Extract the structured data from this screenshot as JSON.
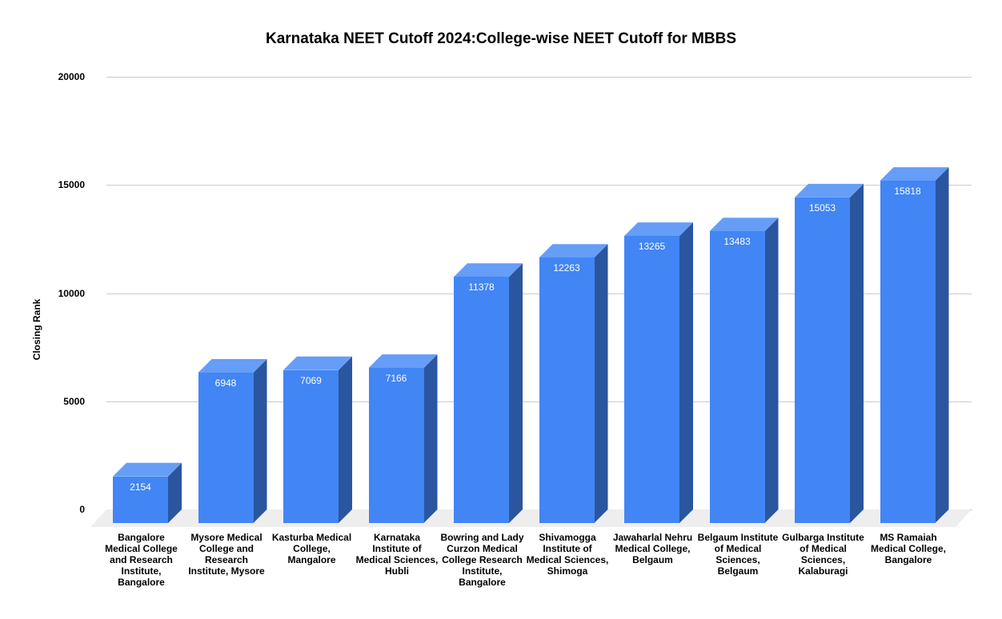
{
  "chart_data": {
    "type": "bar",
    "style": "3d",
    "title": "Karnataka NEET Cutoff 2024:College-wise NEET Cutoff for MBBS",
    "xlabel": "",
    "ylabel": "Closing Rank",
    "ylim": [
      0,
      20000
    ],
    "yticks": [
      "0",
      "5000",
      "10000",
      "15000",
      "20000"
    ],
    "grid": true,
    "legend": "none",
    "categories": [
      "Bangalore Medical College and Research Institute, Bangalore",
      "Mysore Medical College and Research Institute, Mysore",
      "Kasturba Medical College, Mangalore",
      "Karnataka Institute of Medical Sciences, Hubli",
      "Bowring and Lady Curzon Medical College Research Institute, Bangalore",
      "Shivamogga Institute of Medical Sciences, Shimoga",
      "Jawaharlal Nehru Medical College, Belgaum",
      "Belgaum Institute of Medical Sciences, Belgaum",
      "Gulbarga Institute of Medical Sciences, Kalaburagi",
      "MS Ramaiah Medical College, Bangalore"
    ],
    "series": [
      {
        "name": "Closing Rank",
        "values": [
          2154,
          6948,
          7069,
          7166,
          11378,
          12263,
          13265,
          13483,
          15053,
          15818
        ],
        "color": "#4285f4"
      }
    ],
    "data_labels": [
      "2154",
      "6948",
      "7069",
      "7166",
      "11378",
      "12263",
      "13265",
      "13483",
      "15053",
      "15818"
    ]
  },
  "colors": {
    "front": "#4285f4",
    "top": "#669df6",
    "side": "#2a56a0",
    "floor": "#eeeeee",
    "grid": "#cccccc"
  }
}
